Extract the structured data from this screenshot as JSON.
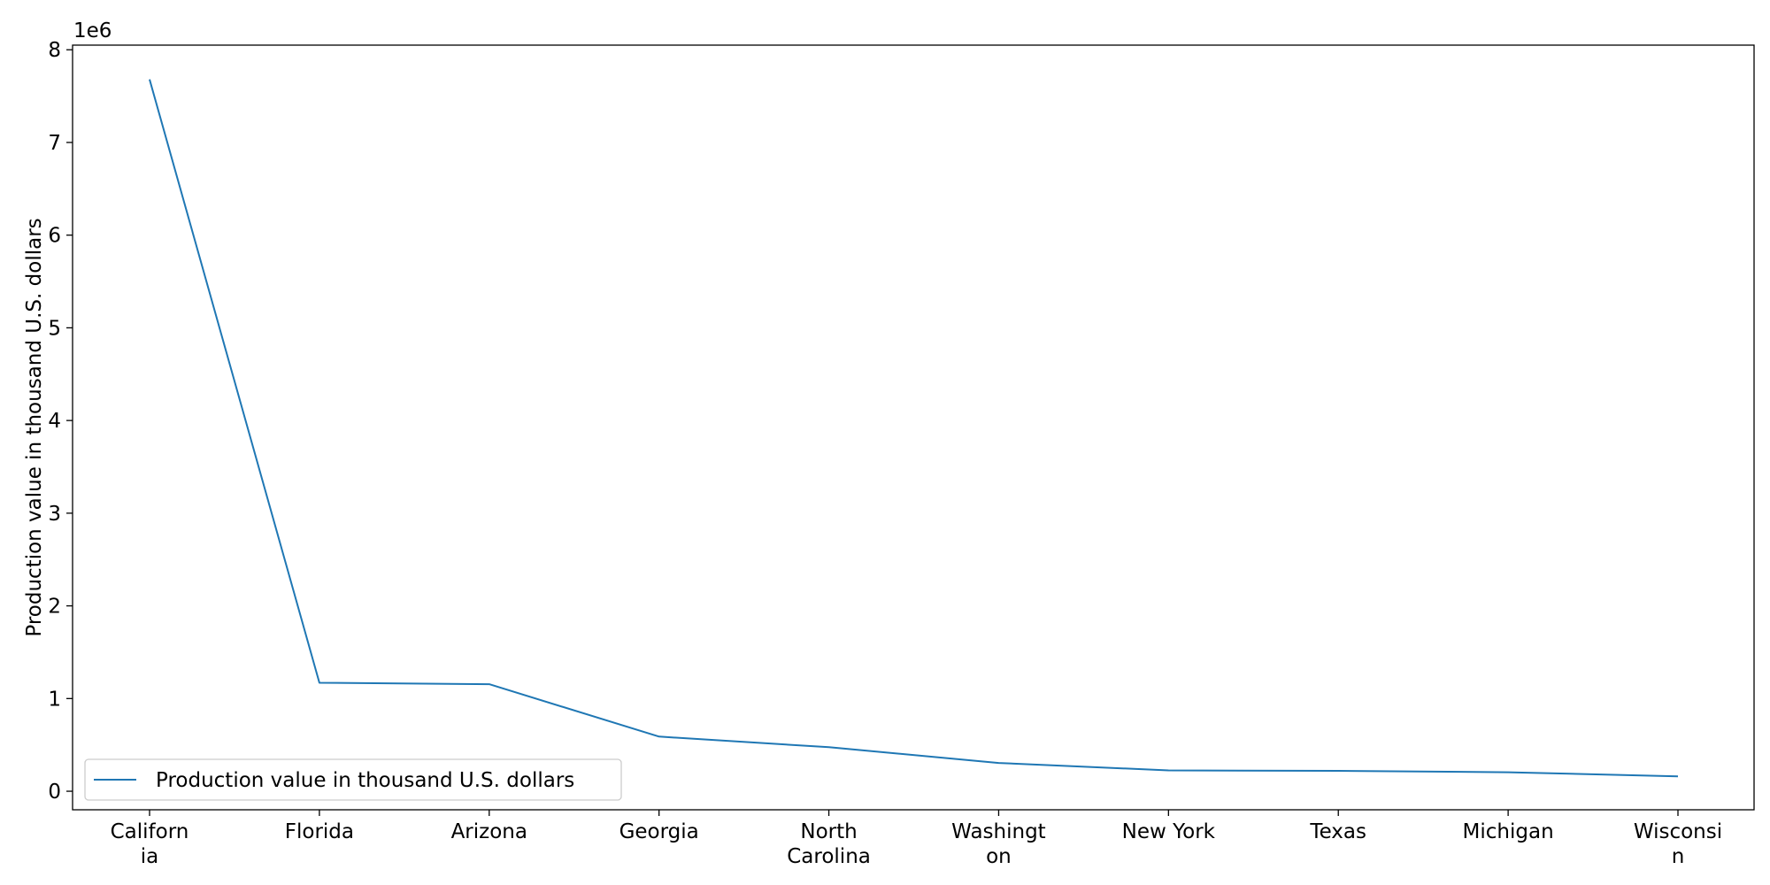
{
  "chart_data": {
    "type": "line",
    "categories": [
      [
        "Californ",
        "ia"
      ],
      [
        "Florida"
      ],
      [
        "Arizona"
      ],
      [
        "Georgia"
      ],
      [
        "North",
        "Carolina"
      ],
      [
        "Washingt",
        "on"
      ],
      [
        "New York"
      ],
      [
        "Texas"
      ],
      [
        "Michigan"
      ],
      [
        "Wisconsi",
        "n"
      ]
    ],
    "series": [
      {
        "name": "Production value in thousand U.S. dollars",
        "color": "#1f77b4",
        "values": [
          7680000,
          1170000,
          1155000,
          590000,
          475000,
          305000,
          225000,
          220000,
          205000,
          160000
        ]
      }
    ],
    "title": "",
    "xlabel": "",
    "ylabel": "Production value in thousand U.S. dollars",
    "yticks": [
      "0",
      "1",
      "2",
      "3",
      "4",
      "5",
      "6",
      "7",
      "8"
    ],
    "ytick_values": [
      0,
      1000000,
      2000000,
      3000000,
      4000000,
      5000000,
      6000000,
      7000000,
      8000000
    ],
    "y_offset_text": "1e6",
    "ylim": [
      -200000,
      8050000
    ],
    "grid": false,
    "legend_position": "lower-left"
  }
}
